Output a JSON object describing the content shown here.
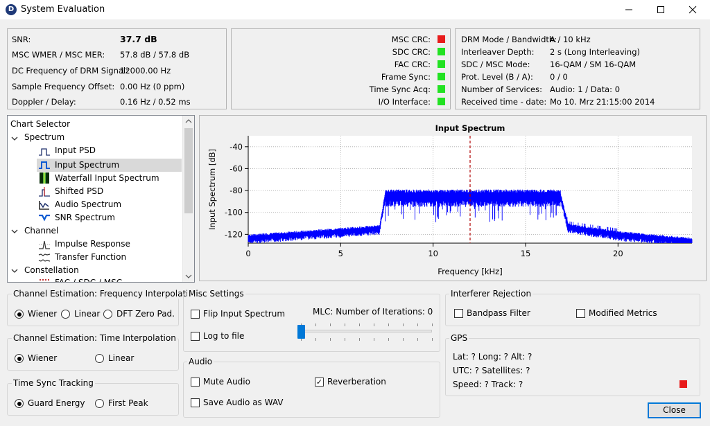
{
  "window": {
    "title": "System Evaluation",
    "icon_letter": "D"
  },
  "status": {
    "snr_label": "SNR:",
    "snr_value": "37.7 dB",
    "wmer_label": "MSC WMER / MSC MER:",
    "wmer_value": "57.8 dB / 57.8 dB",
    "dcfreq_label": "DC Frequency of DRM Signal:",
    "dcfreq_value": "12000.00 Hz",
    "sfo_label": "Sample Frequency Offset:",
    "sfo_value": "0.00 Hz (0 ppm)",
    "doppler_label": "Doppler / Delay:",
    "doppler_value": "0.16 Hz / 0.52 ms"
  },
  "crc": {
    "items": [
      {
        "label": "MSC CRC:",
        "color": "#e81b1b"
      },
      {
        "label": "SDC CRC:",
        "color": "#22e222"
      },
      {
        "label": "FAC CRC:",
        "color": "#22e222"
      },
      {
        "label": "Frame Sync:",
        "color": "#22e222"
      },
      {
        "label": "Time Sync Acq:",
        "color": "#22e222"
      },
      {
        "label": "I/O Interface:",
        "color": "#22e222"
      }
    ]
  },
  "mode": {
    "rows": [
      {
        "label": "DRM Mode / Bandwidth:",
        "value": "A / 10 kHz"
      },
      {
        "label": "Interleaver Depth:",
        "value": "2 s (Long Interleaving)"
      },
      {
        "label": "SDC / MSC Mode:",
        "value": "16-QAM / SM 16-QAM"
      },
      {
        "label": "Prot. Level (B / A):",
        "value": "0 / 0"
      },
      {
        "label": "Number of Services:",
        "value": "Audio: 1 / Data: 0"
      },
      {
        "label": "Received time - date:",
        "value": "Mo 10. Mrz 21:15:00 2014"
      }
    ]
  },
  "tree": {
    "header": "Chart Selector",
    "spectrum": "Spectrum",
    "input_psd": "Input PSD",
    "input_spectrum": "Input Spectrum",
    "waterfall": "Waterfall Input Spectrum",
    "shifted_psd": "Shifted PSD",
    "audio_spectrum": "Audio Spectrum",
    "snr_spectrum": "SNR Spectrum",
    "channel": "Channel",
    "impulse": "Impulse Response",
    "transfer": "Transfer Function",
    "constellation": "Constellation",
    "fac_sdc_msc": "FAC / SDC / MSC"
  },
  "chart_data": {
    "type": "line",
    "title": "Input Spectrum",
    "xlabel": "Frequency [kHz]",
    "ylabel": "Input Spectrum [dB]",
    "xlim": [
      0,
      24
    ],
    "ylim": [
      -128,
      -30
    ],
    "x_ticks": [
      "0",
      "5",
      "10",
      "15",
      "20"
    ],
    "y_ticks": [
      "-40",
      "-60",
      "-80",
      "-100",
      "-120"
    ],
    "marker_x": 12,
    "series_color": "#0000ff",
    "marker_color": "#b00000",
    "grid": true
  },
  "freq_interp": {
    "title": "Channel Estimation: Frequency Interpolation",
    "options": [
      "Wiener",
      "Linear",
      "DFT Zero Pad."
    ],
    "selected": 0
  },
  "time_interp": {
    "title": "Channel Estimation: Time Interpolation",
    "options": [
      "Wiener",
      "Linear"
    ],
    "selected": 0
  },
  "time_sync": {
    "title": "Time Sync Tracking",
    "options": [
      "Guard Energy",
      "First Peak"
    ],
    "selected": 0
  },
  "misc": {
    "title": "Misc Settings",
    "flip": "Flip Input Spectrum",
    "log": "Log to file",
    "mlc_label": "MLC: Number of Iterations: 0",
    "mlc_value": 0
  },
  "audio": {
    "title": "Audio",
    "mute": "Mute Audio",
    "save_wav": "Save Audio as WAV",
    "reverb": "Reverberation",
    "reverb_checked": "✓"
  },
  "interferer": {
    "title": "Interferer Rejection",
    "bandpass": "Bandpass Filter",
    "modified": "Modified Metrics"
  },
  "gps": {
    "title": "GPS",
    "line1": "Lat: ?  Long: ?  Alt: ?",
    "line2": "UTC: ?  Satellites: ?",
    "line3": "Speed: ?  Track: ?",
    "led_color": "#e81b1b"
  },
  "buttons": {
    "close": "Close"
  }
}
